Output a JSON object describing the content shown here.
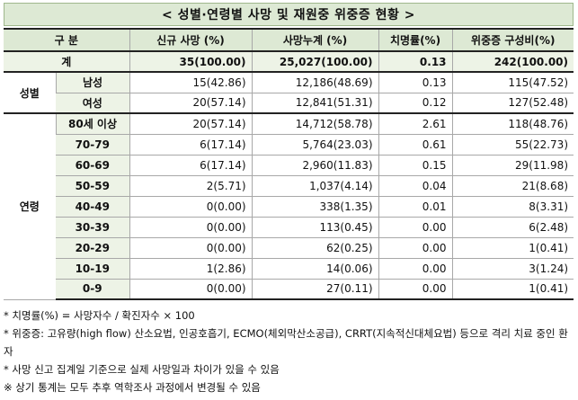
{
  "title": "< 성별·연령별 사망 및 재원중 위중증 현황 >",
  "headers": {
    "category": "구 분",
    "new_deaths": "신규 사망      (%)",
    "cumulative": "사망누계      (%)",
    "fatality": "치명률(%)",
    "severe": "위중증    구성비(%)"
  },
  "total": {
    "label": "계",
    "new_deaths": "35(100.00)",
    "cumulative": "25,027(100.00)",
    "fatality": "0.13",
    "severe": "242(100.00)"
  },
  "sex_group": {
    "label": "성별",
    "rows": [
      {
        "label": "남성",
        "new_deaths": "15(42.86)",
        "cumulative": "12,186(48.69)",
        "fatality": "0.13",
        "severe": "115(47.52)"
      },
      {
        "label": "여성",
        "new_deaths": "20(57.14)",
        "cumulative": "12,841(51.31)",
        "fatality": "0.12",
        "severe": "127(52.48)"
      }
    ]
  },
  "age_group": {
    "label": "연령",
    "rows": [
      {
        "label": "80세 이상",
        "new_deaths": "20(57.14)",
        "cumulative": "14,712(58.78)",
        "fatality": "2.61",
        "severe": "118(48.76)"
      },
      {
        "label": "70-79",
        "new_deaths": "6(17.14)",
        "cumulative": "5,764(23.03)",
        "fatality": "0.61",
        "severe": "55(22.73)"
      },
      {
        "label": "60-69",
        "new_deaths": "6(17.14)",
        "cumulative": "2,960(11.83)",
        "fatality": "0.15",
        "severe": "29(11.98)"
      },
      {
        "label": "50-59",
        "new_deaths": "2(5.71)",
        "cumulative": "1,037(4.14)",
        "fatality": "0.04",
        "severe": "21(8.68)"
      },
      {
        "label": "40-49",
        "new_deaths": "0(0.00)",
        "cumulative": "338(1.35)",
        "fatality": "0.01",
        "severe": "8(3.31)"
      },
      {
        "label": "30-39",
        "new_deaths": "0(0.00)",
        "cumulative": "113(0.45)",
        "fatality": "0.00",
        "severe": "6(2.48)"
      },
      {
        "label": "20-29",
        "new_deaths": "0(0.00)",
        "cumulative": "62(0.25)",
        "fatality": "0.00",
        "severe": "1(0.41)"
      },
      {
        "label": "10-19",
        "new_deaths": "1(2.86)",
        "cumulative": "14(0.06)",
        "fatality": "0.00",
        "severe": "3(1.24)"
      },
      {
        "label": "0-9",
        "new_deaths": "0(0.00)",
        "cumulative": "27(0.11)",
        "fatality": "0.00",
        "severe": "1(0.41)"
      }
    ]
  },
  "notes": [
    "* 치명률(%) = 사망자수 / 확진자수 × 100",
    "* 위중증: 고유량(high flow) 산소요법, 인공호흡기, ECMO(체외막산소공급), CRRT(지속적신대체요법) 등으로 격리 치료 중인 환자",
    "* 사망 신고 집계일 기준으로 실제 사망일과 차이가 있을 수 있음",
    "※ 상기 통계는 모두 추후 역학조사 과정에서 변경될 수 있음"
  ],
  "colors": {
    "header_bg": "#dde9d4",
    "label_bg": "#edf3e6",
    "border": "#a8a8a8"
  }
}
